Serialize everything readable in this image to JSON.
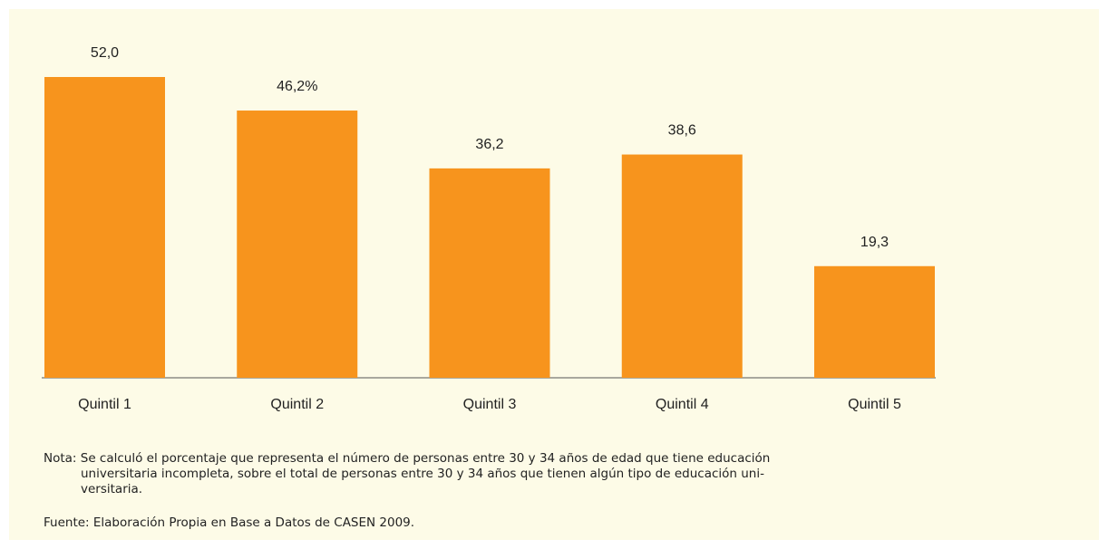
{
  "chart_data": {
    "type": "bar",
    "categories": [
      "Quintil 1",
      "Quintil 2",
      "Quintil 3",
      "Quintil 4",
      "Quintil 5"
    ],
    "values": [
      52.0,
      46.2,
      36.2,
      38.6,
      19.3
    ],
    "value_labels": [
      "52,0",
      "46,2%",
      "36,2",
      "38,6",
      "19,3"
    ],
    "color": "#f7941d",
    "note": [
      "Nota: Se calculó el porcentaje que representa el número de personas entre 30 y 34 años de edad que tiene educación",
      "universitaria incompleta, sobre el total de personas entre 30 y 34 años que tienen algún tipo de educación uni-",
      "versitaria."
    ],
    "source": "Fuente: Elaboración Propia en Base a Datos de CASEN 2009."
  }
}
